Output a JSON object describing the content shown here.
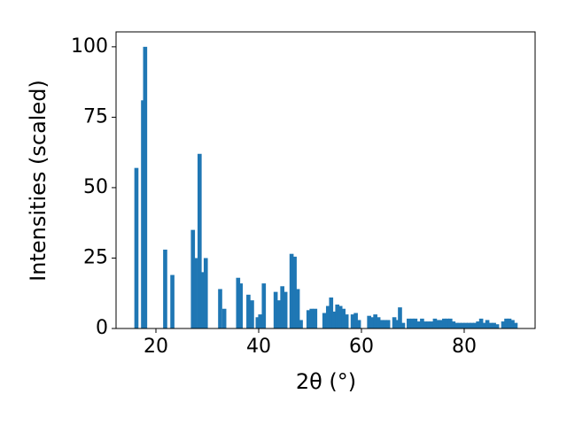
{
  "chart_data": {
    "type": "bar",
    "xlabel": "2θ (°)",
    "ylabel": "Intensities (scaled)",
    "x": [
      16.2,
      17.5,
      17.9,
      21.8,
      23.2,
      27.2,
      27.7,
      28.5,
      29.1,
      29.7,
      32.5,
      33.3,
      36.0,
      36.5,
      38.0,
      38.7,
      39.8,
      40.3,
      41.0,
      43.3,
      44.0,
      44.6,
      45.2,
      46.4,
      47.0,
      47.6,
      48.2,
      49.7,
      50.3,
      51.0,
      52.8,
      53.5,
      54.1,
      54.7,
      55.3,
      55.9,
      56.5,
      57.1,
      58.3,
      58.9,
      59.5,
      61.5,
      62.1,
      62.7,
      63.3,
      64.0,
      64.6,
      65.2,
      66.4,
      66.9,
      67.5,
      68.1,
      69.2,
      69.9,
      70.5,
      71.1,
      71.8,
      72.4,
      73.0,
      73.6,
      74.3,
      74.9,
      75.5,
      76.1,
      76.7,
      77.3,
      77.9,
      78.5,
      79.1,
      79.7,
      80.3,
      80.9,
      81.5,
      82.1,
      82.7,
      83.3,
      83.9,
      84.5,
      85.2,
      85.8,
      86.4,
      87.6,
      88.2,
      88.8,
      89.4,
      90.0
    ],
    "values": [
      57,
      81,
      100,
      28,
      19,
      35,
      25,
      62,
      20,
      25,
      14,
      7,
      18,
      16,
      12,
      10,
      4,
      5,
      16,
      13,
      10,
      15,
      13,
      26.5,
      25.5,
      14,
      3,
      6.5,
      7,
      7,
      5.5,
      8,
      11,
      6,
      8.5,
      8,
      7,
      5,
      5,
      5.5,
      3,
      4.5,
      4,
      5,
      4,
      3,
      3,
      3,
      4,
      3,
      7.5,
      2,
      3.5,
      3.5,
      3.5,
      2.5,
      3.5,
      2.5,
      2.5,
      2.5,
      3.5,
      3,
      3,
      3.5,
      3.5,
      3.5,
      2.5,
      2,
      2,
      2,
      2,
      2,
      2,
      2,
      2.5,
      3.5,
      2,
      3,
      2,
      2,
      1.5,
      2.5,
      3.5,
      3.5,
      3,
      2
    ],
    "color": "#1f77b4",
    "xlim": [
      12.24,
      93.8
    ],
    "ylim": [
      0,
      105.3
    ],
    "xticks": [
      20,
      40,
      60,
      80
    ],
    "yticks": [
      0,
      25,
      50,
      75,
      100
    ],
    "grid": false
  }
}
